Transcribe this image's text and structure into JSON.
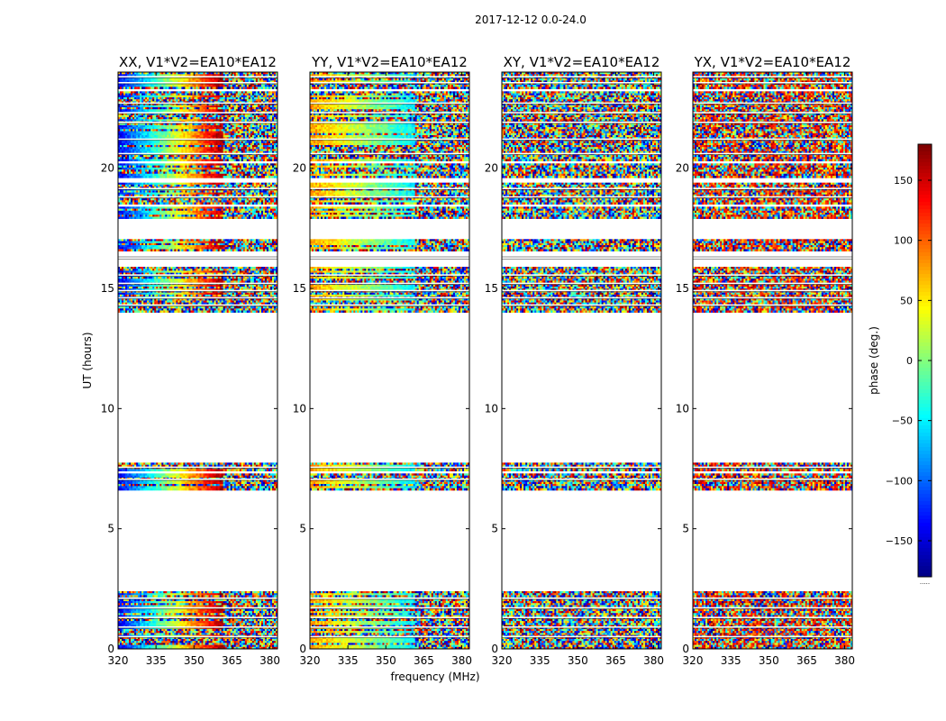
{
  "figure": {
    "suptitle": "2017-12-12 0.0-24.0"
  },
  "chart_data": {
    "type": "heatmap",
    "suptitle": "2017-12-12 0.0-24.0",
    "xlabel": "frequency (MHz)",
    "ylabel": "UT (hours)",
    "xlim": [
      320,
      383
    ],
    "ylim": [
      0,
      24
    ],
    "xticks": [
      320,
      335,
      350,
      365,
      380
    ],
    "yticks": [
      0,
      5,
      10,
      15,
      20
    ],
    "colormap": "jet",
    "panels": [
      {
        "title": "XX, V1*V2=EA10*EA12",
        "show_ytick_labels": true,
        "show_ylabel": true,
        "pattern": "gradient_red",
        "description_of_data": "phase vs frequency and UT"
      },
      {
        "title": "YY, V1*V2=EA10*EA12",
        "show_ytick_labels": true,
        "show_ylabel": false,
        "pattern": "gradient_cyan"
      },
      {
        "title": "XY, V1*V2=EA10*EA12",
        "show_ytick_labels": true,
        "show_ylabel": false,
        "pattern": "noise"
      },
      {
        "title": "YX, V1*V2=EA10*EA12",
        "show_ytick_labels": true,
        "show_ylabel": false,
        "pattern": "noise_warm"
      }
    ],
    "data_bands_ut": [
      [
        0.0,
        2.4
      ],
      [
        6.6,
        7.3
      ],
      [
        7.4,
        7.75
      ],
      [
        14.0,
        15.9
      ],
      [
        16.55,
        17.05
      ],
      [
        17.9,
        18.4
      ],
      [
        18.5,
        19.4
      ],
      [
        19.6,
        20.2
      ],
      [
        20.3,
        23.2
      ],
      [
        23.3,
        24.0
      ]
    ],
    "gap_lines_ut": [
      0.5,
      0.9,
      1.3,
      1.7,
      2.1,
      7.05,
      7.55,
      14.3,
      14.6,
      14.9,
      15.2,
      15.55,
      16.25,
      16.35,
      18.8,
      19.15,
      20.6,
      21.2,
      21.9,
      22.3,
      22.7,
      23.55,
      23.8
    ],
    "colorbar": {
      "label": "phase (deg.)",
      "range": [
        -180,
        180
      ],
      "ticks": [
        150,
        100,
        50,
        0,
        -50,
        -100,
        -150
      ],
      "tick_labels": [
        "150",
        "100",
        "50",
        "0",
        "−50",
        "−100",
        "−150"
      ],
      "below_text": "....."
    }
  }
}
